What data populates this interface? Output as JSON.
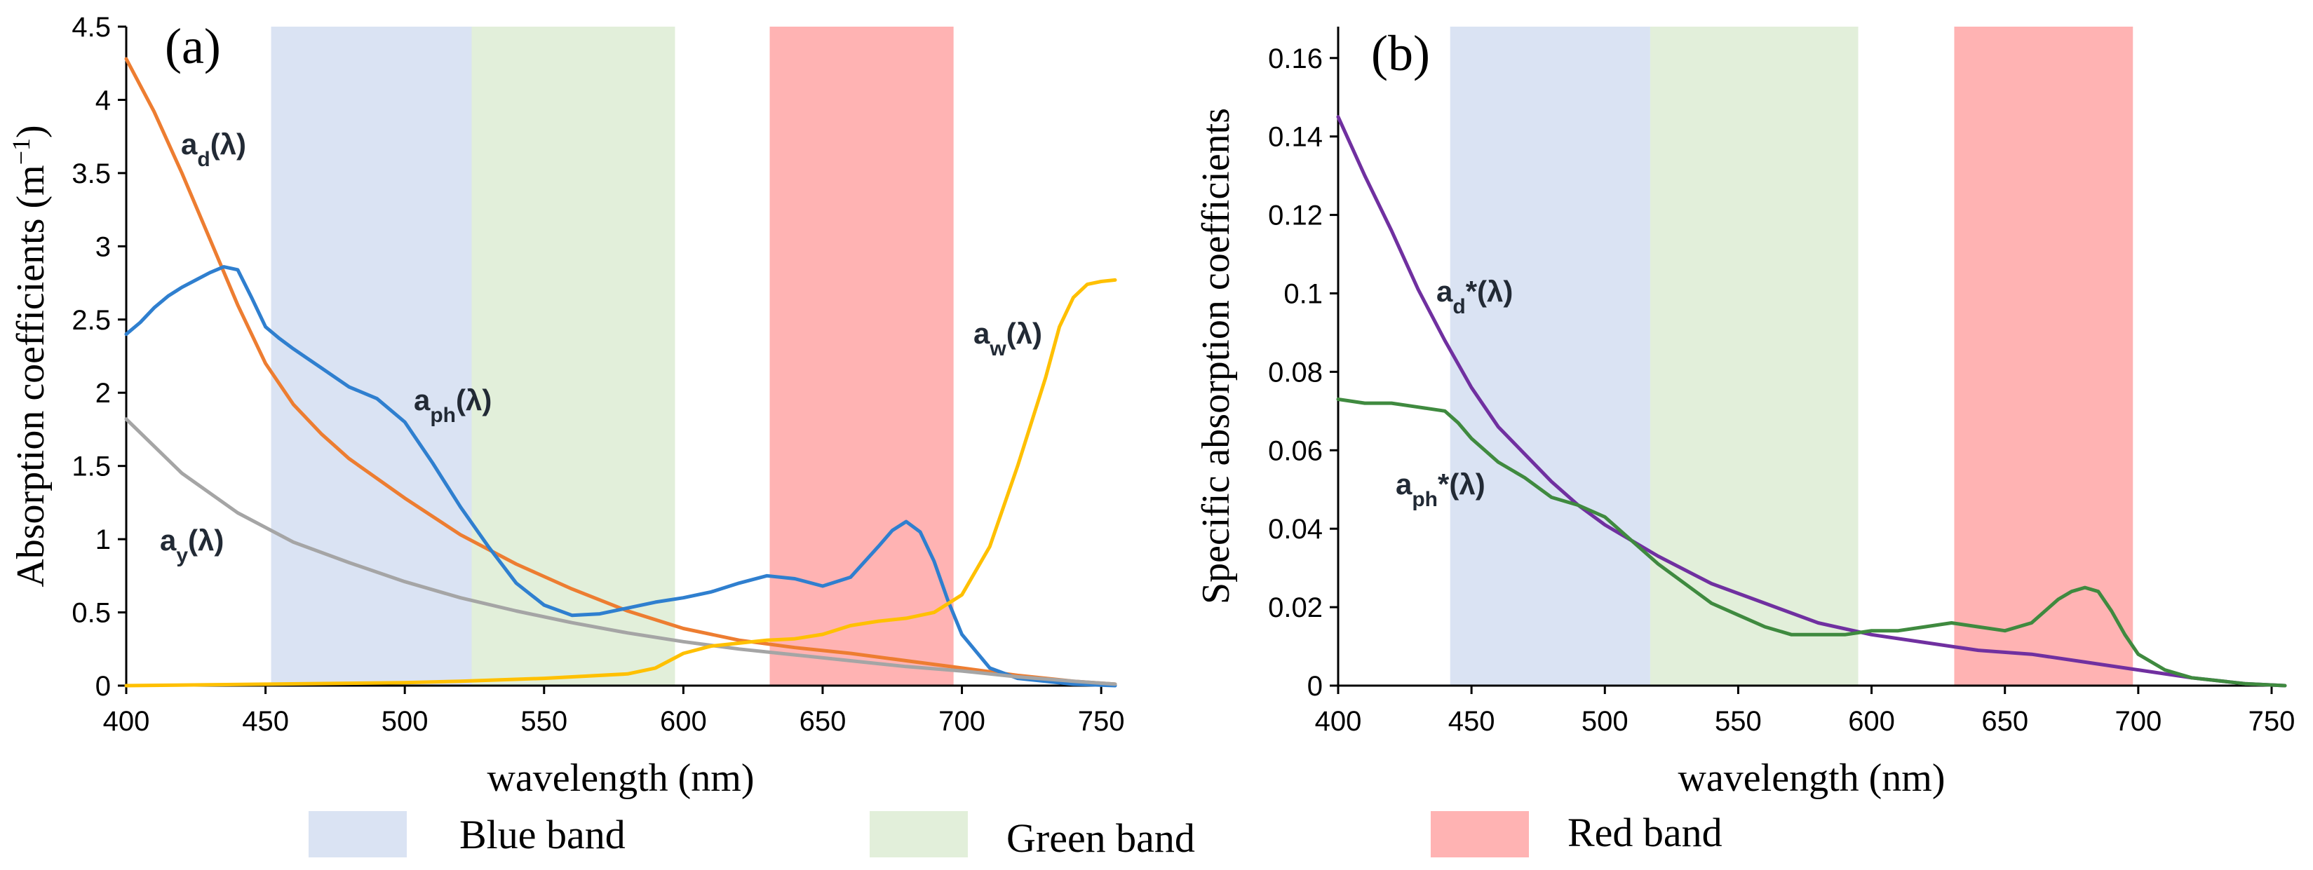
{
  "colors": {
    "blue_band": "#dae3f3",
    "green_band": "#e2efda",
    "red_band": "#ffb3b3",
    "a_d": "#ed7d31",
    "a_ph": "#2f7fcf",
    "a_y": "#a5a5a5",
    "a_w": "#ffc000",
    "a_d_star": "#7030a0",
    "a_ph_star": "#3f8a3f"
  },
  "legend": {
    "blue": "Blue band",
    "green": "Green band",
    "red": "Red band"
  },
  "chart_data": [
    {
      "type": "line",
      "panel_label": "(a)",
      "xlabel": "wavelength (nm)",
      "ylabel_main": "Absorption coefficients (m",
      "ylabel_sup": "−1",
      "ylabel_close": ")",
      "xlim": [
        400,
        755
      ],
      "ylim": [
        0,
        4.5
      ],
      "xticks": [
        400,
        450,
        500,
        550,
        600,
        650,
        700,
        750
      ],
      "yticks": [
        0,
        0.5,
        1,
        1.5,
        2,
        2.5,
        3,
        3.5,
        4,
        4.5
      ],
      "ytick_labels": [
        "0",
        "0.5",
        "1",
        "1.5",
        "2",
        "2.5",
        "3",
        "3.5",
        "4",
        "4.5"
      ],
      "bands": [
        {
          "name": "blue",
          "range": [
            452,
            524
          ]
        },
        {
          "name": "green",
          "range": [
            524,
            597
          ]
        },
        {
          "name": "red",
          "range": [
            631,
            697
          ]
        }
      ],
      "series": [
        {
          "id": "a_d",
          "name": "a_d(λ)",
          "color_key": "a_d",
          "label_main": "a",
          "label_sub": "d",
          "label_tail": "(λ)",
          "x": [
            400,
            410,
            420,
            430,
            440,
            450,
            460,
            470,
            480,
            500,
            520,
            540,
            560,
            580,
            600,
            620,
            640,
            660,
            680,
            700,
            720,
            740,
            755
          ],
          "y": [
            4.28,
            3.92,
            3.5,
            3.05,
            2.6,
            2.2,
            1.92,
            1.72,
            1.55,
            1.28,
            1.03,
            0.83,
            0.66,
            0.51,
            0.39,
            0.31,
            0.26,
            0.22,
            0.17,
            0.12,
            0.07,
            0.03,
            0.01
          ]
        },
        {
          "id": "a_ph",
          "name": "a_ph(λ)",
          "color_key": "a_ph",
          "label_main": "a",
          "label_sub": "ph",
          "label_tail": "(λ)",
          "x": [
            400,
            405,
            410,
            415,
            420,
            425,
            430,
            435,
            440,
            445,
            450,
            455,
            460,
            470,
            480,
            490,
            500,
            510,
            520,
            530,
            540,
            550,
            560,
            570,
            580,
            590,
            600,
            610,
            620,
            630,
            640,
            650,
            660,
            670,
            675,
            680,
            685,
            690,
            695,
            700,
            710,
            720,
            740,
            755
          ],
          "y": [
            2.4,
            2.48,
            2.58,
            2.66,
            2.72,
            2.77,
            2.82,
            2.86,
            2.84,
            2.65,
            2.45,
            2.37,
            2.3,
            2.17,
            2.04,
            1.96,
            1.8,
            1.52,
            1.22,
            0.95,
            0.7,
            0.55,
            0.48,
            0.49,
            0.53,
            0.57,
            0.6,
            0.64,
            0.7,
            0.75,
            0.73,
            0.68,
            0.74,
            0.95,
            1.06,
            1.12,
            1.05,
            0.85,
            0.58,
            0.35,
            0.12,
            0.05,
            0.01,
            0.0
          ]
        },
        {
          "id": "a_y",
          "name": "a_y(λ)",
          "color_key": "a_y",
          "label_main": "a",
          "label_sub": "y",
          "label_tail": "(λ)",
          "x": [
            400,
            420,
            440,
            460,
            480,
            500,
            520,
            540,
            560,
            580,
            600,
            620,
            640,
            660,
            680,
            700,
            720,
            740,
            755
          ],
          "y": [
            1.82,
            1.45,
            1.18,
            0.98,
            0.84,
            0.71,
            0.6,
            0.51,
            0.43,
            0.36,
            0.3,
            0.25,
            0.21,
            0.17,
            0.13,
            0.1,
            0.06,
            0.03,
            0.01
          ]
        },
        {
          "id": "a_w",
          "name": "a_w(λ)",
          "color_key": "a_w",
          "label_main": "a",
          "label_sub": "w",
          "label_tail": "(λ)",
          "x": [
            400,
            450,
            500,
            520,
            550,
            580,
            590,
            600,
            610,
            620,
            630,
            640,
            650,
            660,
            670,
            680,
            690,
            700,
            710,
            720,
            730,
            735,
            740,
            745,
            750,
            755
          ],
          "y": [
            0.0,
            0.01,
            0.02,
            0.03,
            0.05,
            0.08,
            0.12,
            0.22,
            0.27,
            0.29,
            0.31,
            0.32,
            0.35,
            0.41,
            0.44,
            0.46,
            0.5,
            0.62,
            0.95,
            1.5,
            2.1,
            2.45,
            2.65,
            2.74,
            2.76,
            2.77
          ]
        }
      ],
      "annotations": []
    },
    {
      "type": "line",
      "panel_label": "(b)",
      "xlabel": "wavelength (nm)",
      "ylabel": "Specific absorption coefficients",
      "xlim": [
        400,
        755
      ],
      "ylim": [
        0,
        0.168
      ],
      "xticks": [
        400,
        450,
        500,
        550,
        600,
        650,
        700,
        750
      ],
      "yticks": [
        0,
        0.02,
        0.04,
        0.06,
        0.08,
        0.1,
        0.12,
        0.14,
        0.16
      ],
      "ytick_labels": [
        "0",
        "0.02",
        "0.04",
        "0.06",
        "0.08",
        "0.1",
        "0.12",
        "0.14",
        "0.16"
      ],
      "bands": [
        {
          "name": "blue",
          "range": [
            442,
            517
          ]
        },
        {
          "name": "green",
          "range": [
            517,
            595
          ]
        },
        {
          "name": "red",
          "range": [
            631,
            698
          ]
        }
      ],
      "series": [
        {
          "id": "a_d_star",
          "name": "a_d*(λ)",
          "color_key": "a_d_star",
          "label_main": "a",
          "label_sub": "d",
          "label_tail": "*(λ)",
          "x": [
            400,
            410,
            420,
            430,
            440,
            450,
            460,
            470,
            480,
            490,
            500,
            520,
            540,
            560,
            580,
            600,
            620,
            640,
            660,
            680,
            700,
            720,
            740,
            755
          ],
          "y": [
            0.145,
            0.13,
            0.116,
            0.101,
            0.088,
            0.076,
            0.066,
            0.059,
            0.052,
            0.046,
            0.041,
            0.033,
            0.026,
            0.021,
            0.016,
            0.013,
            0.011,
            0.009,
            0.008,
            0.006,
            0.004,
            0.002,
            0.0005,
            0.0
          ]
        },
        {
          "id": "a_ph_star",
          "name": "a_ph*(λ)",
          "color_key": "a_ph_star",
          "label_main": "a",
          "label_sub": "ph",
          "label_tail": "*(λ)",
          "x": [
            400,
            410,
            420,
            430,
            440,
            445,
            450,
            460,
            470,
            480,
            490,
            500,
            510,
            520,
            530,
            540,
            550,
            560,
            570,
            580,
            590,
            600,
            610,
            620,
            630,
            640,
            650,
            660,
            670,
            675,
            680,
            685,
            690,
            695,
            700,
            710,
            720,
            740,
            755
          ],
          "y": [
            0.073,
            0.072,
            0.072,
            0.071,
            0.07,
            0.067,
            0.063,
            0.057,
            0.053,
            0.048,
            0.046,
            0.043,
            0.037,
            0.031,
            0.026,
            0.021,
            0.018,
            0.015,
            0.013,
            0.013,
            0.013,
            0.014,
            0.014,
            0.015,
            0.016,
            0.015,
            0.014,
            0.016,
            0.022,
            0.024,
            0.025,
            0.024,
            0.019,
            0.013,
            0.008,
            0.004,
            0.002,
            0.0005,
            0.0
          ]
        }
      ],
      "annotations": []
    }
  ]
}
